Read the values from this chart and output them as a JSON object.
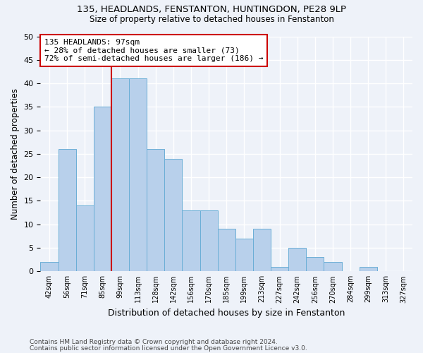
{
  "title1": "135, HEADLANDS, FENSTANTON, HUNTINGDON, PE28 9LP",
  "title2": "Size of property relative to detached houses in Fenstanton",
  "xlabel": "Distribution of detached houses by size in Fenstanton",
  "ylabel": "Number of detached properties",
  "footer1": "Contains HM Land Registry data © Crown copyright and database right 2024.",
  "footer2": "Contains public sector information licensed under the Open Government Licence v3.0.",
  "annotation_line1": "135 HEADLANDS: 97sqm",
  "annotation_line2": "← 28% of detached houses are smaller (73)",
  "annotation_line3": "72% of semi-detached houses are larger (186) →",
  "bar_values": [
    2,
    26,
    14,
    35,
    41,
    41,
    26,
    24,
    13,
    13,
    9,
    7,
    9,
    1,
    5,
    3,
    2,
    0,
    1,
    0,
    0
  ],
  "bin_labels": [
    "42sqm",
    "56sqm",
    "71sqm",
    "85sqm",
    "99sqm",
    "113sqm",
    "128sqm",
    "142sqm",
    "156sqm",
    "170sqm",
    "185sqm",
    "199sqm",
    "213sqm",
    "227sqm",
    "242sqm",
    "256sqm",
    "270sqm",
    "284sqm",
    "299sqm",
    "313sqm",
    "327sqm"
  ],
  "bar_color": "#b8d0eb",
  "bar_edge_color": "#6aaed6",
  "vline_index": 4,
  "vline_color": "#cc0000",
  "annotation_box_edge": "#cc0000",
  "bg_color": "#eef2f9",
  "grid_color": "#ffffff",
  "ylim": [
    0,
    50
  ],
  "yticks": [
    0,
    5,
    10,
    15,
    20,
    25,
    30,
    35,
    40,
    45,
    50
  ]
}
